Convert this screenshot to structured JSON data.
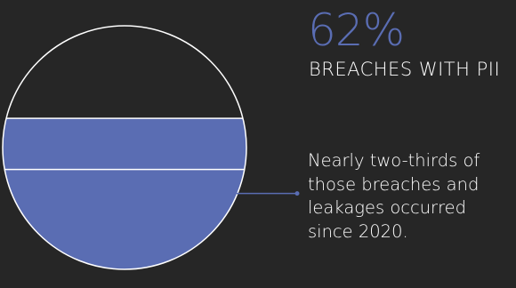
{
  "colors": {
    "background": "#262626",
    "accent": "#5a6db3",
    "outline": "#ffffff",
    "text": "#ffffff"
  },
  "stat": {
    "value": "62%",
    "label": "BREACHES WITH PII"
  },
  "annotation": {
    "text": "Nearly two-thirds of those breaches and leakages occurred since 2020."
  },
  "chart_data": {
    "type": "filled-circle",
    "title": "",
    "total_percent": 100,
    "filled_percent": 62,
    "segments": [
      {
        "value": 62,
        "filled": true,
        "highlighted_part_percent": 41
      },
      {
        "value": 38,
        "filled": false
      }
    ],
    "annotation_points_to": "lower part of filled segment"
  }
}
